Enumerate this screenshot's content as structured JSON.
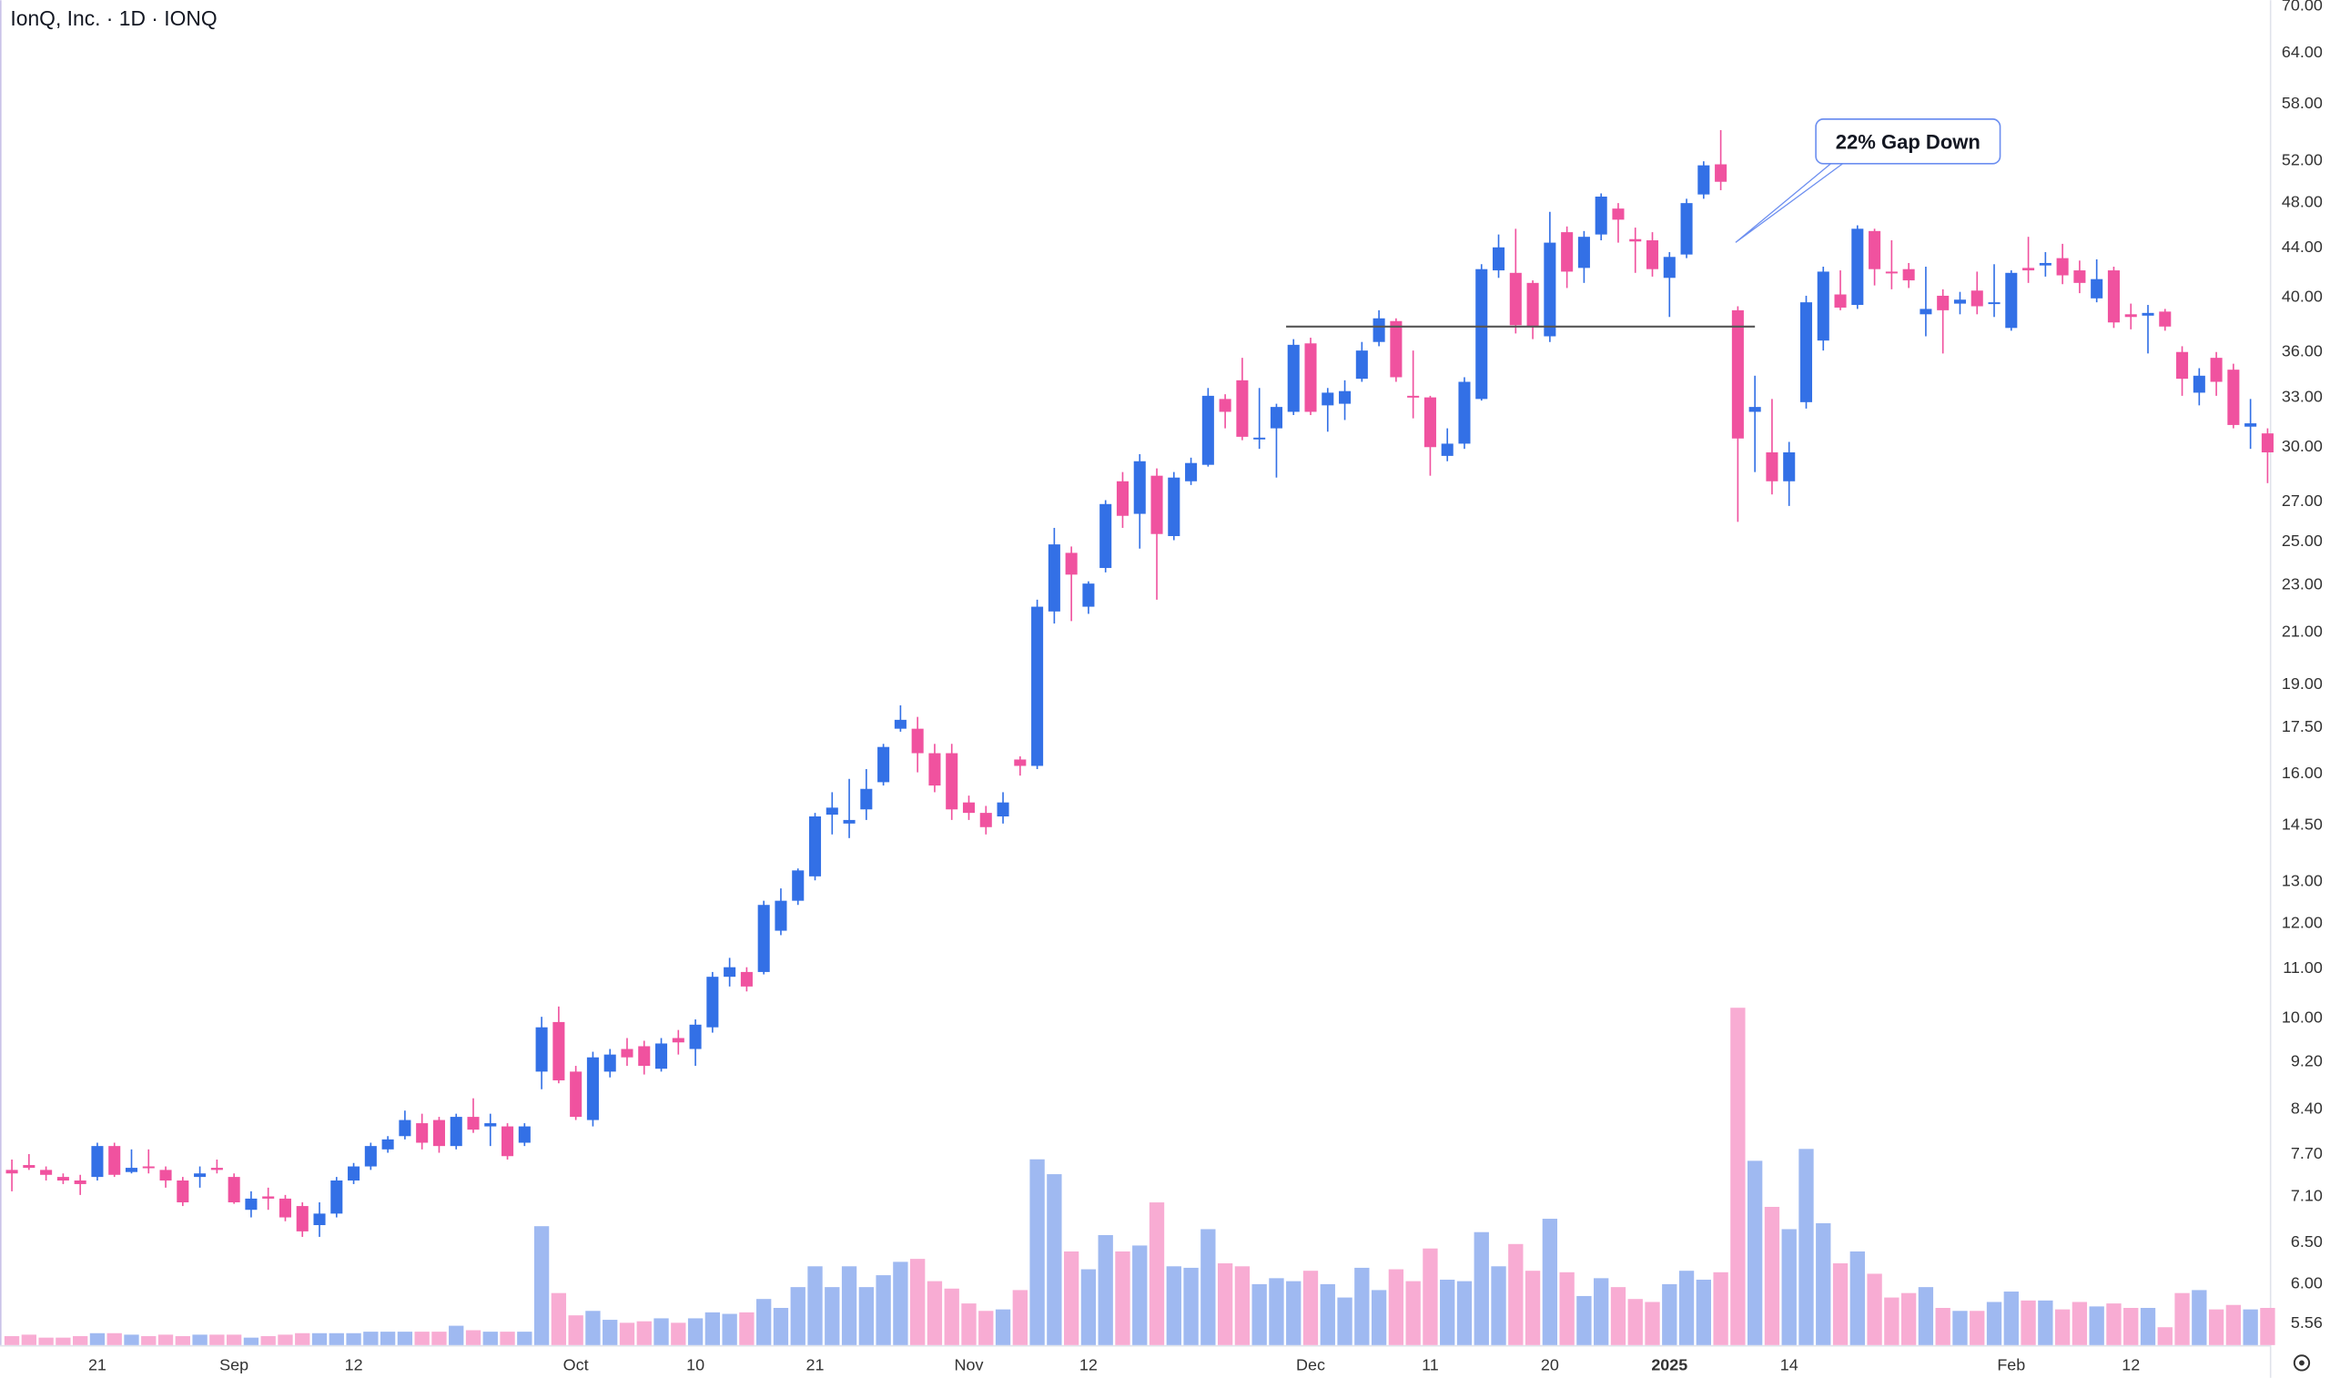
{
  "chart_data": {
    "type": "candlestick",
    "title": "IonQ, Inc. · 1D · IONQ",
    "annotation": "22% Gap Down",
    "log_scale": true,
    "up_color": "#3370e6",
    "down_color": "#f0529f",
    "volume_up_color": "#9fb9f1",
    "volume_down_color": "#f8acd3",
    "line_color": "#555555",
    "ylim": [
      5.32,
      70.6
    ],
    "yticks": [
      {
        "value": 70,
        "label": "70.00"
      },
      {
        "value": 64,
        "label": "64.00"
      },
      {
        "value": 58,
        "label": "58.00"
      },
      {
        "value": 52,
        "label": "52.00"
      },
      {
        "value": 48,
        "label": "48.00"
      },
      {
        "value": 44,
        "label": "44.00"
      },
      {
        "value": 40,
        "label": "40.00"
      },
      {
        "value": 36,
        "label": "36.00"
      },
      {
        "value": 33,
        "label": "33.00"
      },
      {
        "value": 30,
        "label": "30.00"
      },
      {
        "value": 27,
        "label": "27.00"
      },
      {
        "value": 25,
        "label": "25.00"
      },
      {
        "value": 23,
        "label": "23.00"
      },
      {
        "value": 21,
        "label": "21.00"
      },
      {
        "value": 19,
        "label": "19.00"
      },
      {
        "value": 17.5,
        "label": "17.50"
      },
      {
        "value": 16,
        "label": "16.00"
      },
      {
        "value": 14.5,
        "label": "14.50"
      },
      {
        "value": 13,
        "label": "13.00"
      },
      {
        "value": 12,
        "label": "12.00"
      },
      {
        "value": 11,
        "label": "11.00"
      },
      {
        "value": 10,
        "label": "10.00"
      },
      {
        "value": 9.2,
        "label": "9.20"
      },
      {
        "value": 8.4,
        "label": "8.40"
      },
      {
        "value": 7.7,
        "label": "7.70"
      },
      {
        "value": 7.1,
        "label": "7.10"
      },
      {
        "value": 6.5,
        "label": "6.50"
      },
      {
        "value": 6,
        "label": "6.00"
      },
      {
        "value": 5.56,
        "label": "5.56"
      }
    ],
    "hline": {
      "value": 37.7,
      "start": 75,
      "end": 102
    },
    "categories": [
      null,
      null,
      null,
      null,
      null,
      "21",
      null,
      null,
      null,
      null,
      null,
      null,
      null,
      "Sep",
      null,
      null,
      null,
      null,
      null,
      null,
      "12",
      null,
      null,
      null,
      null,
      null,
      null,
      null,
      null,
      null,
      null,
      null,
      null,
      "Oct",
      null,
      null,
      null,
      null,
      null,
      null,
      "10",
      null,
      null,
      null,
      null,
      null,
      null,
      "21",
      null,
      null,
      null,
      null,
      null,
      null,
      null,
      null,
      "Nov",
      null,
      null,
      null,
      null,
      null,
      null,
      "12",
      null,
      null,
      null,
      null,
      null,
      null,
      null,
      null,
      null,
      null,
      null,
      null,
      "Dec",
      null,
      null,
      null,
      null,
      null,
      null,
      "11",
      null,
      null,
      null,
      null,
      null,
      null,
      "20",
      null,
      null,
      null,
      null,
      null,
      null,
      "2025",
      null,
      null,
      null,
      null,
      null,
      null,
      "14",
      null,
      null,
      null,
      null,
      null,
      null,
      null,
      null,
      null,
      null,
      null,
      null,
      "Feb",
      null,
      null,
      null,
      null,
      null,
      null,
      "12",
      null,
      null,
      null,
      null,
      null,
      null,
      null,
      null
    ],
    "open": [
      7.45,
      7.52,
      7.45,
      7.35,
      7.3,
      7.35,
      7.8,
      7.42,
      7.5,
      7.45,
      7.3,
      7.35,
      7.48,
      7.35,
      6.9,
      7.08,
      7.05,
      6.95,
      6.7,
      6.85,
      7.3,
      7.5,
      7.75,
      7.95,
      8.15,
      8.2,
      7.8,
      8.25,
      8.1,
      8.1,
      7.85,
      9.0,
      9.9,
      9.0,
      8.2,
      9.0,
      9.4,
      9.45,
      9.05,
      9.6,
      9.4,
      9.8,
      10.8,
      10.9,
      10.9,
      11.8,
      12.5,
      13.1,
      14.75,
      14.5,
      14.9,
      15.7,
      17.4,
      17.4,
      16.6,
      16.6,
      15.1,
      14.8,
      14.7,
      16.4,
      16.2,
      21.8,
      24.4,
      22.0,
      23.7,
      28.0,
      26.3,
      28.3,
      25.2,
      28.0,
      28.9,
      32.8,
      34.0,
      30.35,
      31.0,
      32.0,
      36.5,
      32.4,
      32.5,
      34.1,
      36.6,
      38.1,
      33.0,
      32.9,
      29.4,
      30.1,
      32.8,
      42.0,
      41.8,
      41.0,
      37.0,
      45.2,
      42.2,
      45.0,
      47.3,
      44.6,
      44.5,
      41.4,
      43.3,
      48.6,
      51.5,
      38.9,
      32.0,
      29.6,
      28.0,
      32.6,
      36.7,
      40.1,
      39.3,
      45.3,
      41.9,
      42.1,
      38.6,
      40.0,
      39.4,
      40.4,
      39.4,
      37.6,
      42.2,
      42.4,
      43.0,
      42.0,
      39.8,
      42.0,
      38.6,
      38.5,
      38.8,
      35.9,
      33.2,
      35.5,
      34.7,
      31.1,
      30.7
    ],
    "high": [
      7.6,
      7.68,
      7.5,
      7.4,
      7.38,
      7.85,
      7.85,
      7.75,
      7.75,
      7.5,
      7.35,
      7.5,
      7.6,
      7.4,
      7.15,
      7.2,
      7.1,
      7.0,
      7.0,
      7.35,
      7.55,
      7.85,
      7.95,
      8.35,
      8.3,
      8.25,
      8.3,
      8.55,
      8.3,
      8.15,
      8.15,
      10.0,
      10.2,
      9.1,
      9.35,
      9.4,
      9.6,
      9.55,
      9.6,
      9.75,
      9.95,
      10.9,
      11.2,
      11.0,
      12.5,
      12.8,
      13.3,
      14.8,
      15.4,
      15.8,
      16.1,
      16.9,
      18.2,
      17.8,
      16.9,
      16.9,
      15.3,
      15.0,
      15.4,
      16.5,
      22.3,
      25.6,
      24.7,
      23.1,
      27.0,
      28.5,
      29.5,
      28.7,
      28.5,
      29.3,
      33.5,
      33.1,
      35.5,
      33.5,
      32.5,
      36.8,
      36.9,
      33.5,
      34.0,
      36.6,
      38.9,
      38.3,
      36.0,
      33.0,
      31.0,
      34.2,
      42.5,
      45.0,
      45.5,
      41.2,
      47.0,
      45.7,
      45.3,
      48.7,
      47.8,
      45.6,
      45.2,
      43.5,
      48.2,
      51.8,
      55.0,
      39.2,
      34.3,
      32.8,
      30.2,
      40.0,
      42.3,
      42.0,
      45.8,
      45.5,
      44.5,
      42.6,
      42.3,
      40.5,
      40.3,
      41.9,
      42.5,
      42.0,
      44.8,
      43.5,
      44.2,
      42.8,
      42.9,
      42.3,
      39.4,
      39.3,
      39.0,
      36.3,
      34.8,
      35.9,
      35.1,
      32.8,
      31.0
    ],
    "low": [
      7.15,
      7.45,
      7.3,
      7.25,
      7.1,
      7.3,
      7.35,
      7.4,
      7.4,
      7.2,
      6.95,
      7.2,
      7.4,
      6.98,
      6.8,
      6.9,
      6.75,
      6.55,
      6.55,
      6.8,
      7.25,
      7.45,
      7.7,
      7.9,
      7.75,
      7.7,
      7.75,
      8.0,
      7.8,
      7.6,
      7.8,
      8.7,
      8.8,
      8.2,
      8.1,
      8.9,
      9.1,
      8.95,
      9.0,
      9.3,
      9.1,
      9.7,
      10.6,
      10.5,
      10.85,
      11.7,
      12.4,
      13.0,
      14.2,
      14.1,
      14.6,
      15.6,
      17.3,
      16.0,
      15.4,
      14.6,
      14.6,
      14.2,
      14.5,
      15.9,
      16.1,
      21.3,
      21.4,
      21.7,
      23.5,
      25.6,
      24.6,
      22.3,
      25.0,
      27.8,
      28.8,
      31.0,
      30.3,
      29.8,
      28.2,
      31.8,
      31.8,
      30.8,
      31.5,
      33.9,
      36.3,
      33.9,
      31.6,
      28.3,
      29.1,
      29.8,
      32.7,
      41.4,
      37.2,
      36.8,
      36.6,
      40.6,
      41.0,
      44.5,
      44.3,
      41.8,
      41.5,
      38.4,
      43.0,
      48.2,
      49.0,
      25.9,
      28.5,
      27.3,
      26.7,
      32.2,
      36.0,
      38.9,
      39.0,
      40.8,
      40.5,
      40.6,
      37.0,
      35.8,
      38.6,
      38.6,
      38.4,
      37.4,
      41.0,
      41.5,
      40.9,
      40.2,
      39.5,
      37.6,
      37.5,
      35.8,
      37.4,
      33.0,
      32.4,
      33.0,
      31.0,
      29.8,
      27.9
    ],
    "close": [
      7.4,
      7.48,
      7.38,
      7.3,
      7.25,
      7.8,
      7.38,
      7.48,
      7.48,
      7.3,
      7.0,
      7.4,
      7.45,
      7.0,
      7.05,
      7.05,
      6.8,
      6.62,
      6.85,
      7.3,
      7.5,
      7.8,
      7.9,
      8.2,
      7.85,
      7.8,
      8.25,
      8.05,
      8.15,
      7.65,
      8.1,
      9.8,
      8.85,
      8.25,
      9.25,
      9.3,
      9.25,
      9.1,
      9.5,
      9.52,
      9.85,
      10.8,
      11.0,
      10.6,
      12.4,
      12.5,
      13.25,
      14.7,
      14.95,
      14.6,
      15.5,
      16.8,
      17.7,
      16.6,
      15.6,
      14.9,
      14.8,
      14.4,
      15.1,
      16.2,
      22.0,
      24.8,
      23.4,
      23.0,
      26.8,
      26.2,
      29.1,
      25.3,
      28.2,
      29.0,
      33.0,
      32.0,
      30.5,
      30.45,
      32.3,
      36.4,
      32.0,
      33.2,
      33.3,
      36.0,
      38.3,
      34.2,
      32.9,
      29.9,
      30.1,
      33.9,
      42.1,
      43.9,
      37.8,
      37.7,
      44.3,
      41.9,
      44.8,
      48.4,
      46.3,
      44.4,
      42.1,
      43.1,
      47.8,
      51.4,
      49.8,
      30.4,
      32.3,
      28.0,
      29.6,
      39.5,
      41.9,
      39.1,
      45.5,
      42.1,
      41.8,
      41.2,
      39.0,
      38.9,
      39.7,
      39.2,
      39.5,
      41.8,
      42.0,
      42.6,
      41.6,
      41.0,
      41.3,
      38.0,
      38.4,
      38.7,
      37.7,
      34.1,
      34.3,
      33.9,
      31.2,
      31.3,
      29.6
    ],
    "volume": [
      6,
      7,
      5,
      5,
      6,
      8,
      8,
      7,
      6,
      7,
      6,
      7,
      7,
      7,
      5,
      6,
      7,
      8,
      8,
      8,
      8,
      9,
      9,
      9,
      9,
      9,
      13,
      10,
      9,
      9,
      9,
      80,
      35,
      20,
      23,
      17,
      15,
      16,
      18,
      15,
      18,
      22,
      21,
      22,
      31,
      25,
      39,
      53,
      39,
      53,
      39,
      47,
      56,
      58,
      43,
      38,
      28,
      23,
      24,
      37,
      125,
      115,
      63,
      51,
      74,
      63,
      67,
      96,
      53,
      52,
      78,
      55,
      53,
      41,
      45,
      43,
      50,
      41,
      32,
      52,
      37,
      51,
      43,
      65,
      44,
      43,
      76,
      53,
      68,
      50,
      85,
      49,
      33,
      45,
      39,
      31,
      29,
      41,
      50,
      44,
      49,
      227,
      124,
      93,
      78,
      132,
      82,
      55,
      63,
      48,
      32,
      35,
      39,
      25,
      23,
      23,
      29,
      36,
      30,
      30,
      24,
      29,
      26,
      28,
      25,
      25,
      12,
      35,
      37,
      24,
      27,
      24,
      25
    ]
  }
}
